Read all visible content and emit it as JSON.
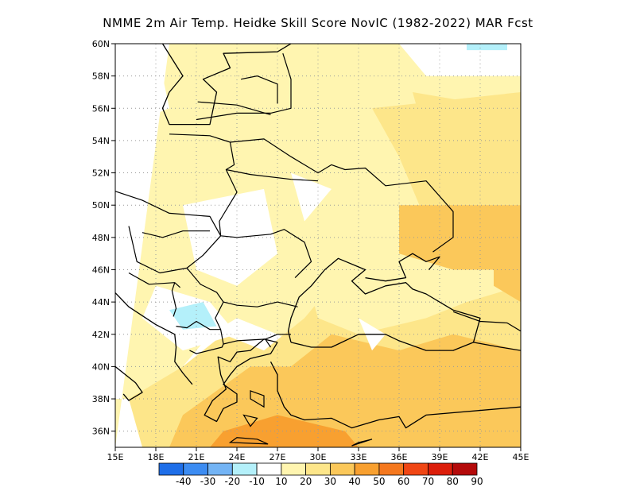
{
  "title": "NMME  2m Air Temp. Heidke Skill Score NovIC (1982-2022) MAR Fcst",
  "map": {
    "lon_range": [
      15,
      45
    ],
    "lat_range": [
      35,
      60
    ],
    "x_ticks": [
      "15E",
      "18E",
      "21E",
      "24E",
      "27E",
      "30E",
      "33E",
      "36E",
      "39E",
      "42E",
      "45E"
    ],
    "x_tick_values": [
      15,
      18,
      21,
      24,
      27,
      30,
      33,
      36,
      39,
      42,
      45
    ],
    "y_ticks": [
      "36N",
      "38N",
      "40N",
      "42N",
      "44N",
      "46N",
      "48N",
      "50N",
      "52N",
      "54N",
      "56N",
      "58N",
      "60N"
    ],
    "y_tick_values": [
      36,
      38,
      40,
      42,
      44,
      46,
      48,
      50,
      52,
      54,
      56,
      58,
      60
    ],
    "grid": "dotted",
    "skill_regions": [
      {
        "level": 10,
        "points": [
          [
            15,
            60
          ],
          [
            45,
            60
          ],
          [
            45,
            35
          ],
          [
            15,
            35
          ]
        ]
      },
      {
        "level": 20,
        "points": [
          [
            19,
            60
          ],
          [
            36,
            60
          ],
          [
            38,
            58
          ],
          [
            45,
            58
          ],
          [
            45,
            35
          ],
          [
            37,
            35
          ],
          [
            35,
            38
          ],
          [
            31,
            40
          ],
          [
            27,
            42
          ],
          [
            24,
            43
          ],
          [
            22,
            42
          ],
          [
            20,
            40
          ],
          [
            17,
            38
          ],
          [
            15,
            38
          ],
          [
            15,
            35
          ]
        ]
      },
      {
        "level": 30,
        "points": [
          [
            34,
            56
          ],
          [
            45,
            57
          ],
          [
            45,
            35
          ],
          [
            17,
            35
          ],
          [
            16,
            38
          ],
          [
            20,
            40
          ],
          [
            23,
            42
          ],
          [
            26,
            41
          ],
          [
            29,
            43
          ],
          [
            31,
            45
          ],
          [
            34,
            44
          ],
          [
            38,
            43
          ],
          [
            41,
            44
          ],
          [
            45,
            45
          ],
          [
            45,
            48
          ],
          [
            38,
            49
          ],
          [
            36,
            53
          ]
        ]
      },
      {
        "level": 40,
        "points": [
          [
            36,
            50
          ],
          [
            45,
            50
          ],
          [
            45,
            35
          ],
          [
            19,
            35
          ],
          [
            20,
            37
          ],
          [
            25,
            40
          ],
          [
            28,
            40
          ],
          [
            31,
            42
          ],
          [
            36,
            41
          ],
          [
            40,
            42
          ],
          [
            45,
            41
          ],
          [
            45,
            46
          ],
          [
            40,
            46
          ],
          [
            36,
            47
          ]
        ]
      },
      {
        "level": 50,
        "points": [
          [
            22,
            35
          ],
          [
            33,
            35
          ],
          [
            32,
            36
          ],
          [
            27,
            37
          ],
          [
            23,
            36
          ]
        ]
      },
      {
        "level": 20,
        "points": [
          [
            29,
            46
          ],
          [
            33,
            45
          ],
          [
            36,
            44
          ],
          [
            40,
            45
          ],
          [
            38,
            43
          ],
          [
            33,
            42
          ],
          [
            30,
            43
          ]
        ]
      },
      {
        "level": 30,
        "points": [
          [
            37,
            57
          ],
          [
            44,
            56
          ],
          [
            45,
            54
          ],
          [
            42,
            53
          ],
          [
            38,
            54
          ]
        ]
      },
      {
        "level": 40,
        "points": [
          [
            43,
            47
          ],
          [
            45,
            46
          ],
          [
            45,
            44
          ],
          [
            43,
            45
          ]
        ]
      },
      {
        "level": 10,
        "points": [
          [
            20,
            50
          ],
          [
            26,
            51
          ],
          [
            27,
            47
          ],
          [
            24,
            45
          ],
          [
            21,
            46
          ]
        ]
      },
      {
        "level": 10,
        "points": [
          [
            28,
            52
          ],
          [
            31,
            51
          ],
          [
            29,
            49
          ]
        ]
      },
      {
        "level": 10,
        "points": [
          [
            18,
            45
          ],
          [
            22,
            44
          ],
          [
            24,
            42
          ],
          [
            20,
            41
          ],
          [
            17,
            43
          ]
        ]
      },
      {
        "level": 10,
        "points": [
          [
            15,
            60
          ],
          [
            18,
            60
          ],
          [
            19,
            56
          ],
          [
            16,
            55
          ],
          [
            15,
            57
          ]
        ]
      },
      {
        "level": 10,
        "points": [
          [
            33,
            43
          ],
          [
            35,
            42
          ],
          [
            34,
            41
          ]
        ]
      },
      {
        "level": 0,
        "points": [
          [
            19,
            43.5
          ],
          [
            21.5,
            44
          ],
          [
            22.5,
            42.5
          ],
          [
            20,
            42.3
          ]
        ]
      },
      {
        "level": 0,
        "points": [
          [
            41,
            60
          ],
          [
            44,
            60
          ],
          [
            44,
            59.6
          ],
          [
            41,
            59.6
          ]
        ]
      }
    ],
    "coastlines": [
      [
        [
          18.5,
          60
        ],
        [
          20,
          58
        ],
        [
          19,
          57
        ],
        [
          18.5,
          56
        ],
        [
          19,
          55
        ],
        [
          22,
          55
        ],
        [
          22.5,
          57
        ],
        [
          21.5,
          57.8
        ],
        [
          23.5,
          58.5
        ],
        [
          23,
          59.4
        ],
        [
          27,
          59.5
        ],
        [
          28,
          60
        ]
      ],
      [
        [
          27,
          41.5
        ],
        [
          26,
          41.7
        ],
        [
          25,
          41
        ],
        [
          24,
          40.9
        ],
        [
          23.5,
          40.3
        ],
        [
          22.6,
          40.6
        ],
        [
          22.8,
          39.5
        ],
        [
          23.2,
          38.6
        ],
        [
          22.2,
          37.9
        ],
        [
          21.6,
          37
        ],
        [
          22.5,
          36.6
        ],
        [
          23,
          37.4
        ],
        [
          24,
          37.8
        ],
        [
          24,
          38.3
        ],
        [
          23,
          38.9
        ],
        [
          23.5,
          39.5
        ],
        [
          24,
          40
        ],
        [
          25,
          40.5
        ],
        [
          26.5,
          40.8
        ],
        [
          27,
          41.5
        ]
      ],
      [
        [
          26.5,
          40.3
        ],
        [
          27,
          39.5
        ],
        [
          27,
          38.5
        ],
        [
          27.5,
          37.5
        ],
        [
          28,
          37
        ],
        [
          29,
          36.7
        ],
        [
          31,
          36.8
        ],
        [
          32.5,
          36.2
        ],
        [
          34.5,
          36.7
        ],
        [
          36,
          36.9
        ],
        [
          36.5,
          36.2
        ],
        [
          38,
          37
        ],
        [
          45,
          37.5
        ]
      ],
      [
        [
          28,
          41.5
        ],
        [
          29.5,
          41.2
        ],
        [
          31,
          41.2
        ],
        [
          33,
          42
        ],
        [
          35,
          42
        ],
        [
          36,
          41.6
        ],
        [
          38,
          41
        ],
        [
          40,
          41
        ],
        [
          41.5,
          41.5
        ],
        [
          42,
          43
        ],
        [
          40,
          43.5
        ],
        [
          38,
          44.5
        ],
        [
          37,
          44.8
        ],
        [
          36.5,
          45.2
        ],
        [
          35,
          45
        ],
        [
          33.5,
          44.5
        ],
        [
          32.5,
          45.3
        ],
        [
          33.5,
          46
        ],
        [
          31.5,
          46.7
        ],
        [
          30.5,
          46
        ],
        [
          29.5,
          45
        ],
        [
          28.6,
          44.3
        ],
        [
          28,
          43
        ],
        [
          27.8,
          42.2
        ],
        [
          28,
          41.5
        ]
      ],
      [
        [
          33.5,
          45.5
        ],
        [
          35,
          45.3
        ],
        [
          36.5,
          45.5
        ],
        [
          36,
          46.5
        ],
        [
          37,
          47
        ],
        [
          38,
          46.5
        ],
        [
          39,
          46.8
        ],
        [
          38.2,
          46
        ]
      ],
      [
        [
          15,
          46
        ],
        [
          14.5,
          45
        ],
        [
          16,
          43.7
        ],
        [
          18,
          42.6
        ],
        [
          19.4,
          42
        ],
        [
          19.5,
          41.2
        ],
        [
          19.4,
          40.3
        ],
        [
          20,
          39.6
        ],
        [
          20.7,
          38.9
        ]
      ],
      [
        [
          15,
          40
        ],
        [
          16.5,
          39
        ],
        [
          17,
          38.4
        ],
        [
          16,
          37.9
        ],
        [
          15.6,
          38.3
        ]
      ]
    ],
    "islands": [
      [
        [
          23.5,
          35.3
        ],
        [
          26.3,
          35.2
        ],
        [
          25.5,
          35.5
        ],
        [
          24,
          35.6
        ]
      ],
      [
        [
          33,
          35.3
        ],
        [
          34,
          35.5
        ],
        [
          32.5,
          35.1
        ]
      ],
      [
        [
          25,
          38.5
        ],
        [
          26,
          38.2
        ],
        [
          26,
          37.5
        ],
        [
          25,
          38
        ]
      ],
      [
        [
          24.5,
          37
        ],
        [
          25.5,
          36.8
        ],
        [
          25,
          36.3
        ]
      ]
    ],
    "borders": [
      [
        [
          21,
          55.3
        ],
        [
          24,
          55.7
        ],
        [
          26.5,
          55.7
        ],
        [
          28,
          56
        ],
        [
          28,
          57.8
        ],
        [
          27.4,
          59.4
        ]
      ],
      [
        [
          21.1,
          56.4
        ],
        [
          24,
          56.2
        ],
        [
          26.5,
          55.6
        ]
      ],
      [
        [
          27,
          56.3
        ],
        [
          27,
          57.5
        ],
        [
          25.5,
          58
        ],
        [
          24.3,
          57.8
        ]
      ],
      [
        [
          19,
          54.4
        ],
        [
          22,
          54.3
        ],
        [
          23.5,
          53.9
        ],
        [
          23.8,
          52.5
        ],
        [
          23.2,
          52.2
        ],
        [
          24,
          50.8
        ],
        [
          22.7,
          49
        ],
        [
          22.8,
          48.1
        ]
      ],
      [
        [
          23.5,
          53.9
        ],
        [
          26,
          54.1
        ],
        [
          28,
          53
        ],
        [
          30,
          52
        ],
        [
          31,
          52.5
        ],
        [
          32,
          52.2
        ],
        [
          33.5,
          52.3
        ],
        [
          35,
          51.2
        ],
        [
          38,
          51.5
        ],
        [
          40,
          49.6
        ],
        [
          40,
          48
        ],
        [
          38.5,
          47.1
        ]
      ],
      [
        [
          23.2,
          52.2
        ],
        [
          25,
          51.9
        ],
        [
          28,
          51.6
        ],
        [
          30,
          51.5
        ]
      ],
      [
        [
          14.5,
          51
        ],
        [
          17,
          50.3
        ],
        [
          19,
          49.5
        ],
        [
          22,
          49.3
        ],
        [
          22.8,
          48.1
        ],
        [
          24,
          48
        ],
        [
          26.5,
          48.2
        ],
        [
          27.5,
          48.5
        ],
        [
          29,
          47.7
        ],
        [
          29.5,
          46.5
        ],
        [
          28.3,
          45.5
        ]
      ],
      [
        [
          17,
          48.3
        ],
        [
          18.5,
          48
        ],
        [
          20,
          48.4
        ],
        [
          22,
          48.4
        ]
      ],
      [
        [
          16,
          48.7
        ],
        [
          16.6,
          46.5
        ],
        [
          18.3,
          45.8
        ],
        [
          20.3,
          46.1
        ],
        [
          21.5,
          46.9
        ],
        [
          22.8,
          48.1
        ]
      ],
      [
        [
          20.3,
          46.1
        ],
        [
          21.3,
          45.1
        ],
        [
          22.5,
          44.6
        ],
        [
          23,
          44
        ],
        [
          24,
          43.8
        ],
        [
          25.5,
          43.7
        ],
        [
          27,
          44
        ],
        [
          28.5,
          43.7
        ]
      ],
      [
        [
          23,
          44
        ],
        [
          22.4,
          43
        ],
        [
          22.8,
          42.3
        ],
        [
          23,
          41.4
        ],
        [
          24,
          41.6
        ],
        [
          26.1,
          41.7
        ],
        [
          26.5,
          41.2
        ]
      ],
      [
        [
          26.1,
          41.7
        ],
        [
          27,
          42
        ],
        [
          28,
          42
        ]
      ],
      [
        [
          19.5,
          42.5
        ],
        [
          20.3,
          42.4
        ],
        [
          21,
          42.8
        ],
        [
          22,
          42.3
        ],
        [
          22.8,
          42.3
        ]
      ],
      [
        [
          20.5,
          41
        ],
        [
          21,
          40.8
        ],
        [
          22.9,
          41.2
        ],
        [
          23,
          41.4
        ]
      ],
      [
        [
          19.3,
          43.1
        ],
        [
          19.5,
          43.6
        ],
        [
          19.2,
          44.7
        ],
        [
          19.4,
          45.2
        ]
      ],
      [
        [
          16,
          45.8
        ],
        [
          17.5,
          45.1
        ],
        [
          19.4,
          45.2
        ],
        [
          19.8,
          44.9
        ]
      ],
      [
        [
          40,
          43.4
        ],
        [
          42,
          42.8
        ],
        [
          44,
          42.7
        ],
        [
          45,
          42.2
        ]
      ],
      [
        [
          41.5,
          41.5
        ],
        [
          43.5,
          41.2
        ],
        [
          45,
          41
        ]
      ]
    ]
  },
  "colorbar": {
    "labels": [
      "-40",
      "-30",
      "-20",
      "-10",
      "10",
      "20",
      "30",
      "40",
      "50",
      "60",
      "70",
      "80",
      "90"
    ],
    "colors": [
      "#1e6ee8",
      "#3c8cf2",
      "#73b4f5",
      "#b4f0fa",
      "#ffffff",
      "#fff5b0",
      "#fde68a",
      "#fbc85a",
      "#f8a030",
      "#f5781e",
      "#f04614",
      "#dc1e0a",
      "#b40a0a"
    ],
    "level_colors": {
      "0": "#b4f0fa",
      "10": "#ffffff",
      "20": "#fff5b0",
      "30": "#fde68a",
      "40": "#fbc85a",
      "50": "#f8a030"
    }
  }
}
